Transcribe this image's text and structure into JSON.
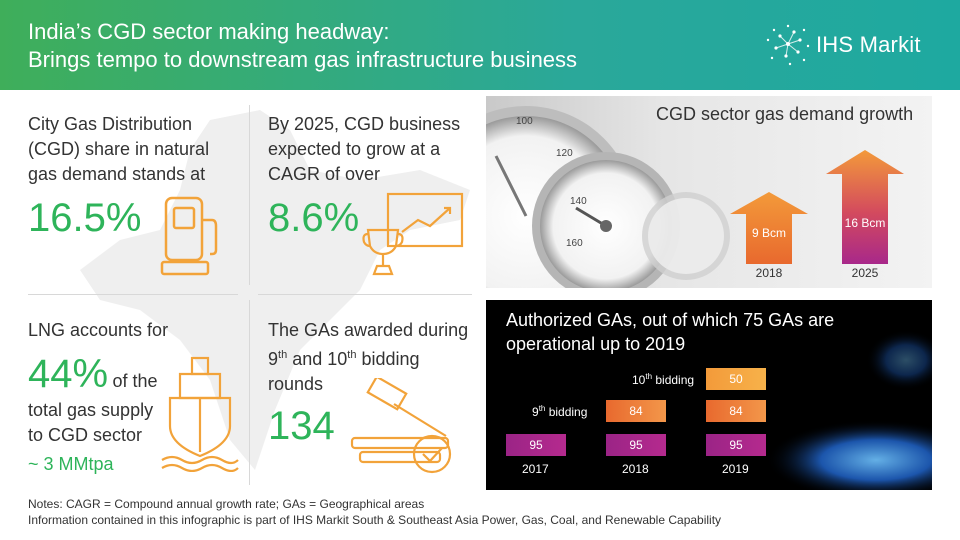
{
  "header": {
    "title_line1": "India’s CGD sector making headway:",
    "title_line2": "Brings tempo to downstream gas infrastructure business",
    "logo_text": "IHS Markit"
  },
  "cells": {
    "share": {
      "line1": "City Gas Distribution",
      "line2": "(CGD) share in natural",
      "line3": "gas demand stands at",
      "value": "16.5%"
    },
    "cagr": {
      "line1": "By 2025, CGD business",
      "line2": "expected to grow at a",
      "line3": "CAGR of over",
      "value": "8.6%"
    },
    "lng": {
      "line1": "LNG accounts for",
      "value": "44%",
      "suffix": "of the",
      "line2": "total gas supply",
      "line3": "to CGD sector",
      "line4": "~ 3 MMtpa"
    },
    "gas": {
      "line1": "The GAs awarded during",
      "line2_a": "9",
      "line2_sup1": "th",
      "line2_b": " and 10",
      "line2_sup2": "th",
      "line2_c": " bidding",
      "line3": "rounds",
      "value": "134"
    }
  },
  "demand": {
    "title": "CGD sector gas demand growth",
    "bars": [
      {
        "year": "2018",
        "label": "9 Bcm"
      },
      {
        "year": "2025",
        "label": "16 Bcm"
      }
    ]
  },
  "authorized": {
    "title": "Authorized GAs, out of which 75 GAs are operational up to 2019",
    "label_10th_a": "10",
    "label_10th_sup": "th",
    "label_10th_b": " bidding",
    "label_9th_a": "9",
    "label_9th_sup": "th",
    "label_9th_b": " bidding",
    "years": [
      "2017",
      "2018",
      "2019"
    ],
    "values": {
      "base_2017": "95",
      "base_2018": "95",
      "base_2019": "95",
      "ninth_2018": "84",
      "ninth_2019": "84",
      "tenth_2019": "50"
    }
  },
  "notes": {
    "line1": "Notes: CAGR = Compound annual growth rate; GAs = Geographical areas",
    "line2": "Information contained in this infographic is part of IHS Markit South & Southeast Asia Power, Gas, Coal, and Renewable Capability"
  },
  "colors": {
    "accent_green": "#2eb45a",
    "icon_orange": "#f2a33a",
    "purple": "#b52a8e",
    "orange": "#f08a3c"
  }
}
